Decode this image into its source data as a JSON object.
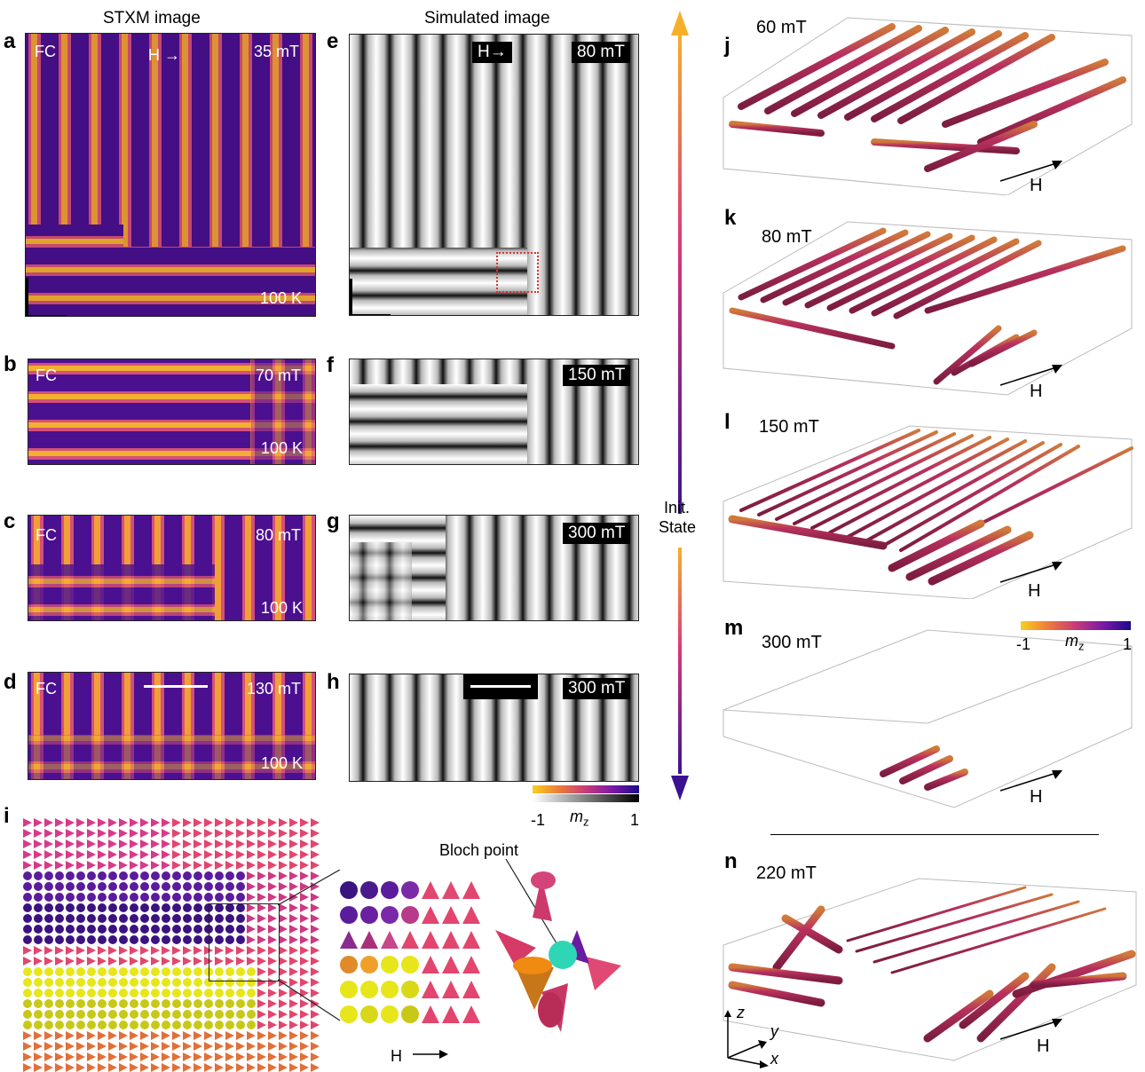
{
  "columns": {
    "stxm_title": "STXM image",
    "sim_title": "Simulated image"
  },
  "stxm_panels": [
    {
      "label": "a",
      "condition": "FC",
      "arrow": "H →",
      "field": "35 mT",
      "temp": "100 K"
    },
    {
      "label": "b",
      "condition": "FC",
      "field": "70 mT",
      "temp": "100 K"
    },
    {
      "label": "c",
      "condition": "FC",
      "field": "80 mT",
      "temp": "100 K"
    },
    {
      "label": "d",
      "condition": "FC",
      "field": "130 mT",
      "temp": "100 K"
    }
  ],
  "sim_panels": [
    {
      "label": "e",
      "arrow": "H→",
      "field": "80 mT"
    },
    {
      "label": "f",
      "field": "150 mT"
    },
    {
      "label": "g",
      "field": "300 mT"
    },
    {
      "label": "h",
      "field": "300 mT"
    }
  ],
  "colorbar": {
    "min": "-1",
    "max": "1",
    "variable_base": "m",
    "variable_sub": "z"
  },
  "center_arrow": {
    "label_line1": "Init.",
    "label_line2": "State"
  },
  "panel_i": {
    "label": "i",
    "bloch_label": "Bloch point",
    "h_label": "H"
  },
  "panels_3d": [
    {
      "label": "j",
      "field": "60 mT",
      "h_label": "H"
    },
    {
      "label": "k",
      "field": "80 mT",
      "h_label": "H"
    },
    {
      "label": "l",
      "field": "150 mT",
      "h_label": "H"
    },
    {
      "label": "m",
      "field": "300 mT",
      "h_label": "H"
    },
    {
      "label": "n",
      "field": "220 mT",
      "h_label": "H"
    }
  ],
  "axes": {
    "x": "x",
    "y": "y",
    "z": "z"
  },
  "colors": {
    "plasma_dark": "#2a0b6e",
    "plasma_mid": "#b8327c",
    "plasma_bright": "#f6c12a",
    "tube": "#a52c5a",
    "tube_edge": "#d8902a",
    "cone_yellow": "#e6e61a",
    "cone_pink": "#e2466e",
    "cone_purple": "#5a1c9c",
    "bloch_sphere": "#2fd6b6",
    "red_box": "#e23030"
  }
}
